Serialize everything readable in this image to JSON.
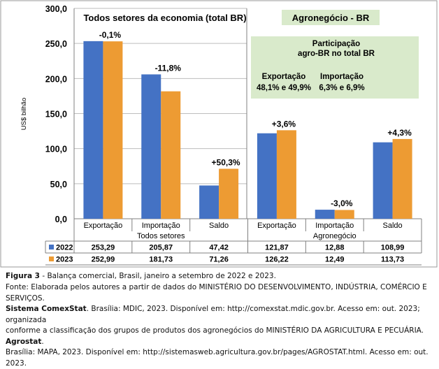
{
  "chart_data": {
    "type": "bar",
    "title": "Todos setores da economia (total BR)",
    "panel_title": "Agronegócio - BR",
    "ylabel": "US$ bilhão",
    "ylim": [
      0,
      300
    ],
    "yticks": [
      "0,0",
      "50,0",
      "100,0",
      "150,0",
      "200,0",
      "250,0",
      "300,0"
    ],
    "grid": true,
    "categories": [
      "Exportação",
      "Importação",
      "Saldo",
      "Exportação",
      "Importação",
      "Saldo"
    ],
    "groups": [
      "Todos setores",
      "Agronegócio"
    ],
    "series": [
      {
        "name": "2022",
        "color": "#4472C4",
        "values": [
          253.29,
          205.87,
          47.42,
          121.87,
          12.88,
          108.99
        ],
        "labels": [
          "253,29",
          "205,87",
          "47,42",
          "121,87",
          "12,88",
          "108,99"
        ]
      },
      {
        "name": "2023",
        "color": "#ED9B33",
        "values": [
          252.99,
          181.73,
          71.26,
          126.22,
          12.49,
          113.73
        ],
        "labels": [
          "252,99",
          "181,73",
          "71,26",
          "126,22",
          "12,49",
          "113,73"
        ]
      }
    ],
    "annotations": [
      "-0,1%",
      "-11,8%",
      "+50,3%",
      "+3,6%",
      "-3,0%",
      "+4,3%"
    ],
    "participation_box": {
      "heading_line1": "Participação",
      "heading_line2": "agro-BR no total BR",
      "export_label": "Exportação",
      "import_label": "Importação",
      "export_value": "48,1% e 49,9%",
      "import_value": "6,3% e 6,9%"
    }
  },
  "caption": {
    "figure_label": "Figura 3",
    "figure_text": " - Balança comercial, Brasil, janeiro a setembro de 2022 e 2023.",
    "source_line1": "Fonte: Elaborada pelos autores a partir de dados do MINISTÉRIO DO DESENVOLVIMENTO, INDÚSTRIA, COMÉRCIO E SERVIÇOS.",
    "source_bold1": "Sistema ComexStat",
    "source_line2": ". Brasília: MDIC, 2023. Disponível em: http://comexstat.mdic.gov.br. Acesso em: out. 2023; organizada",
    "source_line3a": "conforme a classificação dos grupos de produtos dos agronegócios do MINISTÉRIO DA AGRICULTURA E PECUÁRIA. ",
    "source_bold2": "Agrostat",
    "source_line3b": ".",
    "source_line4": "Brasília: MAPA, 2023. Disponível em: http://sistemasweb.agricultura.gov.br/pages/AGROSTAT.html. Acesso em: out. 2023."
  }
}
